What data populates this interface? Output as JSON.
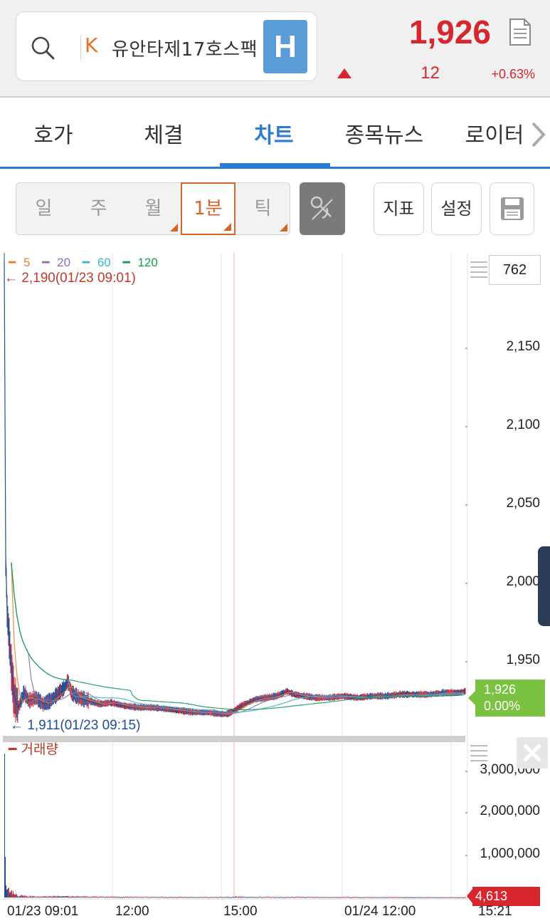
{
  "header": {
    "market_code": "K",
    "stock_name": "유안타제17호스팩",
    "badge": "H",
    "price": "1,926",
    "change": "12",
    "change_rate": "+0.63%",
    "direction": "up"
  },
  "tabs": [
    {
      "label": "호가",
      "active": false
    },
    {
      "label": "체결",
      "active": false
    },
    {
      "label": "차트",
      "active": true
    },
    {
      "label": "종목뉴스",
      "active": false
    },
    {
      "label": "로이터",
      "active": false
    }
  ],
  "toolbar": {
    "periods": [
      {
        "label": "일",
        "active": false,
        "corner": false
      },
      {
        "label": "주",
        "active": false,
        "corner": false
      },
      {
        "label": "월",
        "active": false,
        "corner": true
      },
      {
        "label": "1분",
        "active": true,
        "corner": true
      },
      {
        "label": "틱",
        "active": false,
        "corner": true
      }
    ],
    "indicator_label": "지표",
    "settings_label": "설정"
  },
  "chart": {
    "legend": [
      {
        "label": "5",
        "color": "#e8822a"
      },
      {
        "label": "20",
        "color": "#8c6bb8"
      },
      {
        "label": "60",
        "color": "#3cb6cf"
      },
      {
        "label": "120",
        "color": "#1a9a57"
      }
    ],
    "max_marker": "2,190(01/23 09:01)",
    "min_marker": "1,911(01/23 09:15)",
    "count": "762",
    "current_price": "1,926",
    "current_rate": "0.00%",
    "volume_label": "거래량",
    "volume_current": "4,613",
    "x_ticks": [
      "01/23 09:01",
      "12:00",
      "15:00",
      "01/24 12:00",
      "15:21"
    ]
  },
  "chart_data": {
    "type": "line",
    "price_axis": {
      "ticks": [
        "2,150",
        "2,100",
        "2,050",
        "2,000",
        "1,950"
      ],
      "ylim": [
        1900,
        2195
      ]
    },
    "volume_axis": {
      "ticks": [
        "3,000,000",
        "2,000,000",
        "1,000,000"
      ],
      "ylim": [
        0,
        3350000
      ]
    },
    "x_labels": [
      "01/23 09:01",
      "12:00",
      "15:00",
      "01/24 12:00",
      "15:21"
    ],
    "price_series": [
      [
        0,
        2190
      ],
      [
        2,
        2010
      ],
      [
        4,
        1975
      ],
      [
        7,
        1958
      ],
      [
        10,
        1940
      ],
      [
        14,
        1922
      ],
      [
        20,
        1916
      ],
      [
        28,
        1925
      ],
      [
        35,
        1920
      ],
      [
        45,
        1922
      ],
      [
        55,
        1918
      ],
      [
        65,
        1920
      ],
      [
        75,
        1924
      ],
      [
        85,
        1928
      ],
      [
        90,
        1932
      ],
      [
        95,
        1925
      ],
      [
        105,
        1922
      ],
      [
        120,
        1920
      ],
      [
        135,
        1918
      ],
      [
        150,
        1919
      ],
      [
        170,
        1917
      ],
      [
        190,
        1916
      ],
      [
        210,
        1916
      ],
      [
        230,
        1915
      ],
      [
        250,
        1914
      ],
      [
        270,
        1913
      ],
      [
        290,
        1913
      ],
      [
        305,
        1912
      ],
      [
        315,
        1912
      ],
      [
        325,
        1914
      ],
      [
        335,
        1917
      ],
      [
        345,
        1919
      ],
      [
        355,
        1921
      ],
      [
        370,
        1922
      ],
      [
        385,
        1923
      ],
      [
        400,
        1926
      ],
      [
        410,
        1924
      ],
      [
        425,
        1923
      ],
      [
        440,
        1922
      ],
      [
        460,
        1922
      ],
      [
        480,
        1923
      ],
      [
        500,
        1922
      ],
      [
        520,
        1923
      ],
      [
        540,
        1923
      ],
      [
        560,
        1924
      ],
      [
        580,
        1924
      ],
      [
        600,
        1924
      ],
      [
        620,
        1925
      ],
      [
        640,
        1925
      ],
      [
        652,
        1926
      ]
    ],
    "ma_series": [
      {
        "name": "5",
        "color": "#e8822a"
      },
      {
        "name": "20",
        "color": "#8c6bb8"
      },
      {
        "name": "60",
        "color": "#3cb6cf"
      },
      {
        "name": "120",
        "color": "#1a9a57"
      }
    ],
    "volume_series": [
      [
        0,
        3300000
      ],
      [
        2,
        420000
      ],
      [
        5,
        160000
      ],
      [
        9,
        110000
      ],
      [
        14,
        70000
      ],
      [
        20,
        40000
      ],
      [
        30,
        28000
      ],
      [
        45,
        22000
      ],
      [
        60,
        20000
      ],
      [
        80,
        30000
      ],
      [
        90,
        26000
      ],
      [
        120,
        18000
      ],
      [
        160,
        14000
      ],
      [
        200,
        12000
      ],
      [
        260,
        10000
      ],
      [
        300,
        9000
      ],
      [
        330,
        16000
      ],
      [
        360,
        12000
      ],
      [
        400,
        11000
      ],
      [
        450,
        9000
      ],
      [
        500,
        8000
      ],
      [
        550,
        7000
      ],
      [
        600,
        6000
      ],
      [
        650,
        4613
      ]
    ]
  }
}
